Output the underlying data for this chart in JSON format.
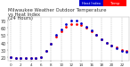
{
  "title": "Milwaukee Weather Outdoor Temperature",
  "title2": "vs Heat Index",
  "title3": "(24 Hours)",
  "bg_color": "#ffffff",
  "plot_bg": "#ffffff",
  "text_color": "#333333",
  "grid_color": "#aaaaaa",
  "legend_temp_color": "#ff0000",
  "legend_hi_color": "#0000cc",
  "legend_label_temp": "Temp",
  "legend_label_hi": "Heat Index",
  "hours": [
    0,
    1,
    2,
    3,
    4,
    5,
    6,
    7,
    8,
    9,
    10,
    11,
    12,
    13,
    14,
    15,
    16,
    17,
    18,
    19,
    20,
    21,
    22,
    23
  ],
  "temp": [
    20,
    19,
    19,
    18,
    18,
    18,
    20,
    28,
    38,
    48,
    56,
    62,
    65,
    66,
    64,
    60,
    55,
    50,
    44,
    40,
    36,
    33,
    30,
    28
  ],
  "heat_index": [
    20,
    19,
    19,
    18,
    18,
    18,
    20,
    28,
    38,
    50,
    58,
    66,
    70,
    70,
    67,
    62,
    57,
    51,
    45,
    40,
    36,
    32,
    29,
    27
  ],
  "ylim": [
    15,
    75
  ],
  "ytick_vals": [
    20,
    30,
    40,
    50,
    60,
    70
  ],
  "xtick_step": 2,
  "ylabel_fontsize": 3.5,
  "xlabel_fontsize": 3.0,
  "title_fontsize": 3.8,
  "marker_size": 1.0
}
